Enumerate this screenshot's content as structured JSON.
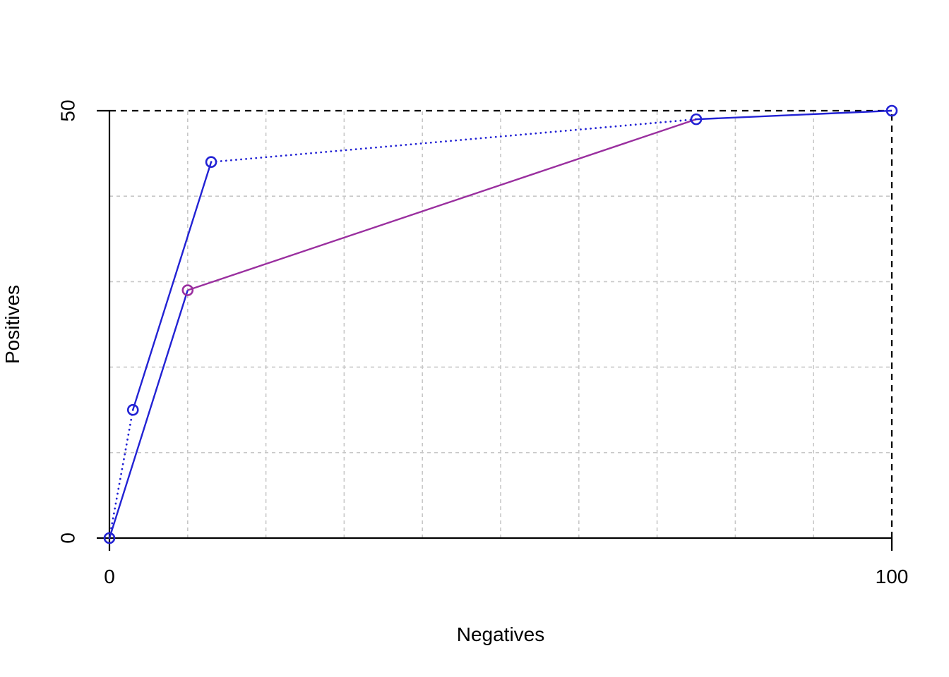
{
  "chart_data": {
    "type": "line",
    "title": "",
    "xlabel": "Negatives",
    "ylabel": "Positives",
    "xlim": [
      0,
      100
    ],
    "ylim": [
      0,
      50
    ],
    "x_ticks": [
      {
        "value": 0,
        "label": "0"
      },
      {
        "value": 100,
        "label": "100"
      }
    ],
    "y_ticks": [
      {
        "value": 0,
        "label": "0"
      },
      {
        "value": 50,
        "label": "50"
      }
    ],
    "grid": {
      "on": true,
      "x_values": [
        10,
        20,
        30,
        40,
        50,
        60,
        70,
        80,
        90
      ],
      "y_values": [
        10,
        20,
        30,
        40
      ],
      "color": "#c8c8c8",
      "style": "dashed"
    },
    "reference_lines": [
      {
        "name": "max-positives-line",
        "axis": "y",
        "value": 50,
        "color": "#000000",
        "style": "dashed"
      },
      {
        "name": "max-negatives-line",
        "axis": "x",
        "value": 100,
        "color": "#000000",
        "style": "dashed"
      }
    ],
    "axis_color": "#000000",
    "series": [
      {
        "name": "purple-solid-curve",
        "color": "#9a2f9f",
        "style": "solid",
        "segments": [
          [
            [
              10,
              29
            ],
            [
              75,
              49
            ]
          ]
        ]
      },
      {
        "name": "blue-solid-curve",
        "color": "#2222d4",
        "style": "solid",
        "segments": [
          [
            [
              0,
              0
            ],
            [
              10,
              29
            ]
          ],
          [
            [
              3,
              15
            ],
            [
              13,
              44
            ]
          ],
          [
            [
              75,
              49
            ],
            [
              100,
              50
            ]
          ]
        ]
      },
      {
        "name": "blue-dotted-hull",
        "color": "#2222d4",
        "style": "dotted",
        "segments": [
          [
            [
              0,
              0
            ],
            [
              3,
              15
            ]
          ],
          [
            [
              13,
              44
            ],
            [
              75,
              49
            ]
          ]
        ]
      }
    ],
    "markers": [
      {
        "x": 0,
        "y": 0,
        "color": "#2222d4",
        "shape": "open-circle"
      },
      {
        "x": 3,
        "y": 15,
        "color": "#2222d4",
        "shape": "open-circle"
      },
      {
        "x": 13,
        "y": 44,
        "color": "#2222d4",
        "shape": "open-circle"
      },
      {
        "x": 75,
        "y": 49,
        "color": "#2222d4",
        "shape": "open-circle"
      },
      {
        "x": 100,
        "y": 50,
        "color": "#2222d4",
        "shape": "open-circle"
      },
      {
        "x": 10,
        "y": 29,
        "color": "#9a2f9f",
        "shape": "open-circle"
      }
    ],
    "legend": null
  }
}
